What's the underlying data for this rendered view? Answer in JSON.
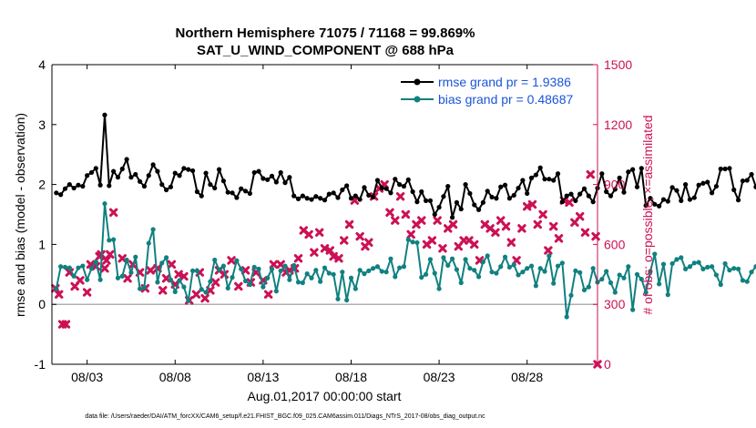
{
  "chart_data": {
    "type": "line",
    "title": "Northern Hemisphere 71075 / 71168 = 99.869%",
    "subtitle": "SAT_U_WIND_COMPONENT @ 688 hPa",
    "xlabel": "Aug.01,2017 00:00:00 start",
    "ylabel_left": "rmse and bias (model - observation)",
    "ylabel_right": "# of obs: o=possible; ×=assimilated",
    "footer": "data file: /Users/raeder/DAI/ATM_forcXX/CAM6_setup/f.e21.FHIST_BGC.f09_025.CAM6assim.011/Diags_NTrS_2017-08/obs_diag_output.nc",
    "x_ticks": [
      "08/03",
      "08/08",
      "08/13",
      "08/18",
      "08/23",
      "08/28"
    ],
    "y_left_ticks": [
      "4",
      "3",
      "2",
      "1",
      "0",
      "-1"
    ],
    "y_right_ticks": [
      "1500",
      "1200",
      "900",
      "600",
      "300",
      "0"
    ],
    "ylim_left": [
      -1,
      4
    ],
    "ylim_right": [
      0,
      1500
    ],
    "xlim_days": [
      0.0,
      31.0
    ],
    "colors": {
      "rmse": "#000000",
      "bias": "#118080",
      "obs": "#cc1155",
      "right_axis": "#cc1155",
      "zero_line": "#b0b0b0",
      "legend_text": "#1a55d8"
    },
    "legend": [
      {
        "name": "rmse",
        "label": "rmse grand pr = 1.9386"
      },
      {
        "name": "bias",
        "label": "bias grand pr = 0.48687"
      }
    ],
    "series": [
      {
        "name": "rmse",
        "values": [
          1.86,
          1.83,
          1.93,
          2.0,
          1.94,
          1.99,
          1.97,
          2.15,
          2.2,
          2.27,
          1.99,
          3.16,
          1.98,
          2.22,
          2.12,
          2.26,
          2.42,
          2.12,
          2.17,
          2.05,
          1.97,
          2.15,
          2.33,
          2.22,
          2.0,
          1.91,
          1.96,
          2.19,
          2.15,
          2.27,
          2.25,
          2.23,
          1.88,
          1.81,
          2.19,
          2.0,
          1.94,
          2.25,
          2.06,
          1.87,
          1.86,
          1.78,
          1.93,
          1.89,
          1.85,
          2.2,
          2.22,
          2.1,
          2.08,
          2.14,
          2.04,
          2.2,
          2.03,
          2.12,
          1.81,
          1.76,
          1.81,
          1.77,
          1.75,
          1.8,
          1.77,
          1.74,
          1.84,
          1.86,
          1.78,
          1.91,
          1.98,
          1.77,
          1.81,
          1.75,
          1.95,
          1.82,
          1.79,
          2.07,
          1.94,
          1.93,
          1.86,
          2.09,
          2.0,
          1.97,
          2.08,
          1.88,
          1.71,
          1.88,
          1.73,
          1.73,
          1.5,
          1.62,
          1.8,
          1.97,
          1.45,
          1.7,
          1.59,
          2.0,
          1.85,
          1.66,
          1.58,
          1.7,
          1.89,
          1.79,
          1.77,
          1.96,
          1.99,
          1.77,
          1.82,
          1.94,
          2.07,
          1.85,
          2.11,
          2.16,
          2.28,
          2.09,
          2.09,
          2.07,
          2.18,
          1.71,
          1.81,
          1.84,
          1.73,
          1.84,
          1.93,
          1.81,
          1.71,
          1.94,
          2.18,
          1.88,
          1.81,
          1.92,
          2.11,
          1.87,
          2.21,
          2.25,
          1.96,
          2.27,
          1.65,
          1.77,
          1.67,
          1.64,
          1.75,
          1.72,
          1.95,
          1.9,
          1.73,
          2.0,
          1.75,
          1.78,
          1.99,
          2.02,
          2.04,
          1.86,
          1.97,
          2.26,
          2.26,
          2.27,
          1.91,
          1.74,
          2.06,
          2.07,
          2.17,
          1.96,
          2.02,
          2.16,
          2.43,
          2.15,
          1.92,
          2.19,
          2.23,
          2.0,
          1.99,
          2.06,
          2.02,
          1.97,
          2.07,
          2.08,
          2.11
        ]
      },
      {
        "name": "bias",
        "values": [
          0.26,
          0.63,
          0.62,
          0.61,
          0.47,
          0.61,
          0.64,
          0.41,
          0.6,
          0.71,
          0.41,
          1.68,
          1.07,
          1.08,
          0.44,
          0.47,
          0.74,
          0.53,
          0.79,
          0.26,
          0.28,
          1.02,
          1.25,
          0.37,
          0.69,
          0.78,
          0.41,
          0.21,
          0.4,
          0.29,
          0.06,
          0.56,
          0.56,
          0.25,
          0.2,
          0.38,
          0.74,
          0.58,
          0.64,
          0.27,
          0.45,
          0.73,
          0.59,
          0.39,
          0.33,
          0.62,
          0.59,
          0.29,
          0.44,
          0.59,
          0.22,
          0.56,
          0.64,
          0.41,
          0.65,
          0.37,
          0.36,
          0.51,
          0.44,
          0.57,
          0.38,
          0.61,
          0.52,
          0.5,
          0.09,
          0.54,
          0.07,
          0.44,
          0.26,
          0.57,
          0.51,
          0.56,
          0.6,
          0.63,
          0.55,
          0.54,
          0.76,
          0.46,
          0.61,
          0.63,
          1.08,
          1.04,
          1.03,
          0.45,
          0.5,
          0.75,
          0.52,
          0.26,
          0.78,
          0.65,
          0.76,
          0.58,
          0.36,
          0.75,
          0.6,
          0.57,
          0.46,
          0.71,
          0.81,
          0.54,
          0.52,
          0.63,
          0.79,
          0.62,
          0.66,
          0.49,
          0.54,
          0.6,
          0.64,
          0.31,
          0.6,
          0.55,
          0.81,
          0.35,
          0.64,
          0.69,
          -0.21,
          0.15,
          0.56,
          0.53,
          0.24,
          0.29,
          0.6,
          0.37,
          0.42,
          0.55,
          0.36,
          0.2,
          0.49,
          0.44,
          0.63,
          -0.09,
          0.5,
          0.42,
          0.2,
          0.55,
          0.84,
          0.34,
          0.67,
          0.16,
          0.68,
          0.75,
          0.78,
          0.59,
          0.63,
          0.69,
          0.7,
          0.59,
          0.62,
          0.63,
          0.49,
          0.33,
          0.68,
          0.57,
          0.6,
          0.59,
          0.4,
          0.38,
          0.54,
          0.63,
          0.59,
          0.65,
          0.57,
          0.4,
          0.36,
          0.66,
          0.58,
          0.41,
          0.58,
          0.6,
          0.58,
          0.53,
          0.69,
          0.37,
          0.63,
          0.6,
          0.62,
          0.4,
          0.58,
          0.86,
          0.84
        ]
      },
      {
        "name": "obs_assimilated",
        "x": [
          0.2,
          0.4,
          0.6,
          0.8,
          1.0,
          1.3,
          1.6,
          2.0,
          2.2,
          2.5,
          2.7,
          2.8,
          3.0,
          3.1,
          3.3,
          3.5,
          4.0,
          4.3,
          4.6,
          5.0,
          5.3,
          5.6,
          6.0,
          6.3,
          6.5,
          6.8,
          7.0,
          7.2,
          7.5,
          7.8,
          8.2,
          8.4,
          8.7,
          9.0,
          9.3,
          9.5,
          9.8,
          10.2,
          10.6,
          11.0,
          11.3,
          11.6,
          12.0,
          12.3,
          12.6,
          13.0,
          13.3,
          13.5,
          13.8,
          14.0,
          14.3,
          14.6,
          14.9,
          15.2,
          15.5,
          15.8,
          16.0,
          16.3,
          16.6,
          16.9,
          17.2,
          17.5,
          17.8,
          18.0,
          18.3,
          18.6,
          18.9,
          19.2,
          19.5,
          19.8,
          20.1,
          20.4,
          20.7,
          21.0,
          21.3,
          21.6,
          21.9,
          22.2,
          22.5,
          22.8,
          23.1,
          23.4,
          23.7,
          24.0,
          24.3,
          24.6,
          24.9,
          25.2,
          25.5,
          25.8,
          26.1,
          26.4,
          26.7,
          27.0,
          27.3,
          27.6,
          27.9,
          28.2,
          28.5,
          28.8,
          29.1,
          29.4,
          29.7,
          30.0,
          30.3,
          30.6,
          30.9
        ],
        "values": [
          380,
          350,
          200,
          200,
          460,
          390,
          420,
          360,
          500,
          490,
          540,
          550,
          480,
          520,
          550,
          760,
          530,
          430,
          500,
          460,
          380,
          470,
          480,
          370,
          430,
          500,
          400,
          450,
          440,
          320,
          350,
          460,
          330,
          370,
          410,
          470,
          450,
          520,
          390,
          470,
          410,
          460,
          420,
          350,
          500,
          500,
          460,
          470,
          480,
          530,
          670,
          650,
          560,
          660,
          580,
          570,
          540,
          530,
          620,
          700,
          820,
          640,
          590,
          610,
          840,
          880,
          900,
          760,
          720,
          840,
          750,
          650,
          700,
          720,
          600,
          620,
          720,
          580,
          680,
          700,
          590,
          620,
          620,
          600,
          520,
          700,
          680,
          660,
          720,
          690,
          610,
          520,
          680,
          790,
          800,
          700,
          750,
          570,
          690,
          630,
          820,
          810,
          710,
          740,
          660,
          950,
          640
        ]
      }
    ],
    "obs_last_value": 0
  }
}
